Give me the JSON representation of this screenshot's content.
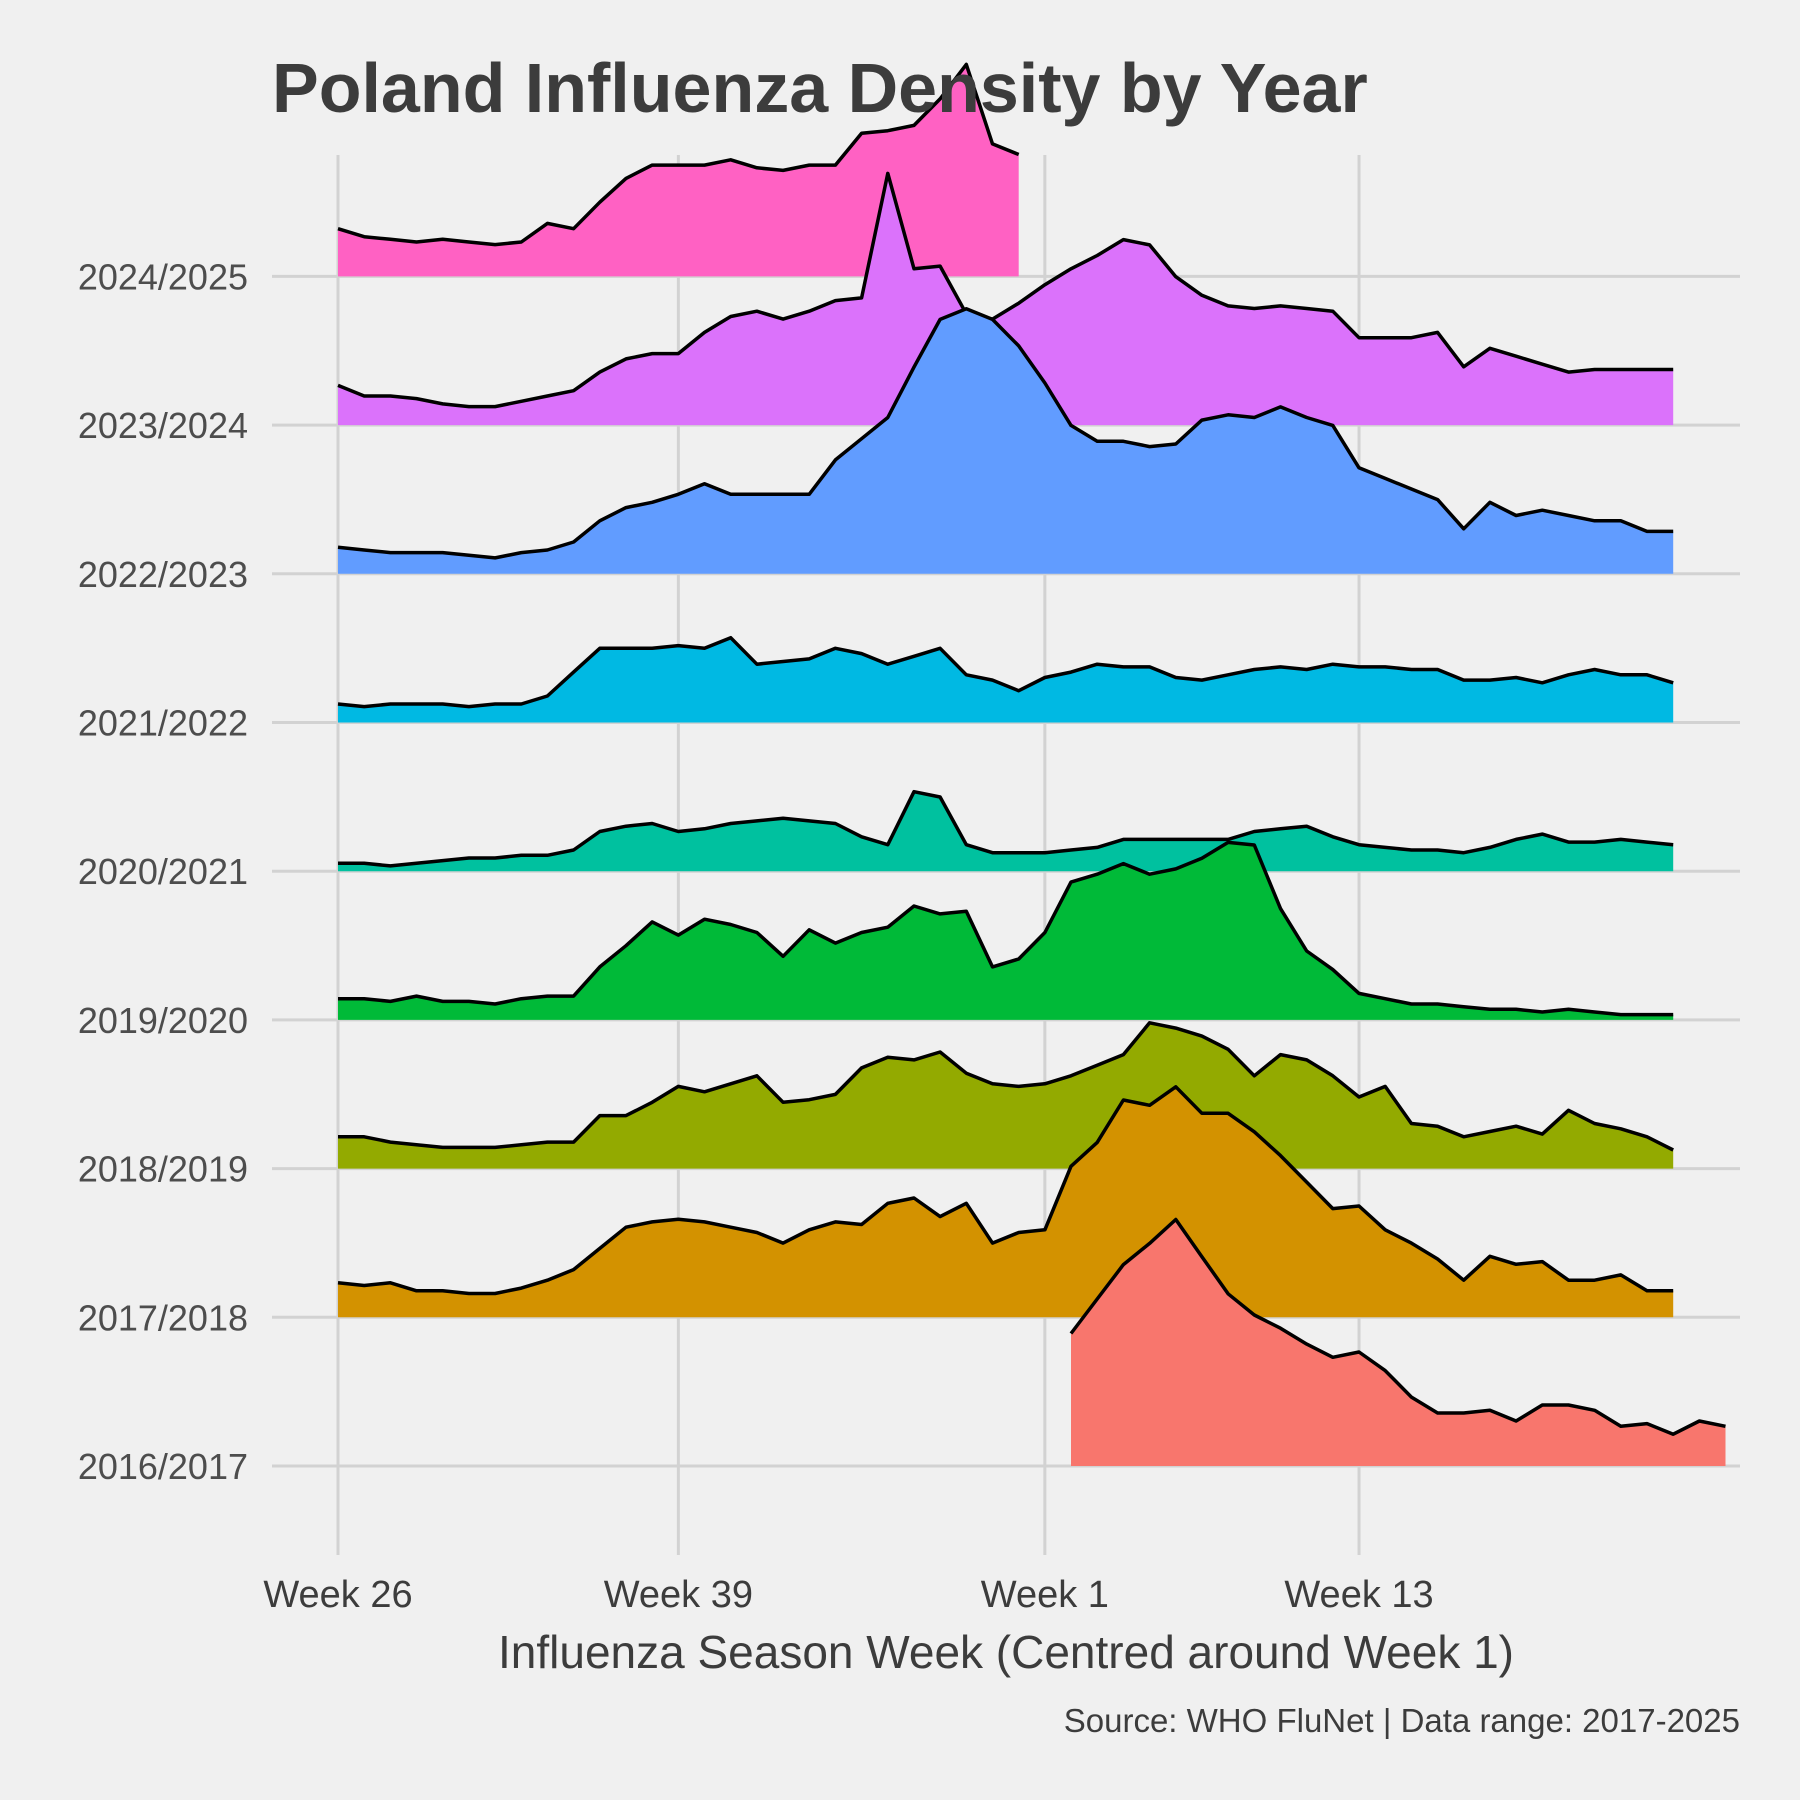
{
  "chart_data": {
    "type": "area",
    "subtype": "ridgeline",
    "title": "Poland Influenza Density by Year",
    "xlabel": "Influenza Season Week (Centred around Week 1)",
    "caption": "Source: WHO FluNet | Data range: 2017-2025",
    "x_tick_labels": [
      "Week 26",
      "Week 39",
      "Week 1",
      "Week 13"
    ],
    "x_tick_positions": [
      0,
      13,
      27,
      39
    ],
    "xlim": [
      -3,
      55
    ],
    "grid": true,
    "y_categories": [
      "2016/2017",
      "2017/2018",
      "2018/2019",
      "2019/2020",
      "2020/2021",
      "2021/2022",
      "2022/2023",
      "2023/2024",
      "2024/2025"
    ],
    "series": [
      {
        "name": "2016/2017",
        "color": "#F8766D",
        "start": 28,
        "values": [
          0.5,
          0.63,
          0.76,
          0.84,
          0.93,
          0.79,
          0.65,
          0.57,
          0.52,
          0.46,
          0.41,
          0.43,
          0.36,
          0.26,
          0.2,
          0.2,
          0.21,
          0.17,
          0.23,
          0.23,
          0.21,
          0.15,
          0.16,
          0.12,
          0.17,
          0.15
        ]
      },
      {
        "name": "2017/2018",
        "color": "#D39200",
        "start": 0,
        "values": [
          0.13,
          0.12,
          0.13,
          0.1,
          0.1,
          0.09,
          0.09,
          0.11,
          0.14,
          0.18,
          0.26,
          0.34,
          0.36,
          0.37,
          0.36,
          0.34,
          0.32,
          0.28,
          0.33,
          0.36,
          0.35,
          0.43,
          0.45,
          0.38,
          0.43,
          0.28,
          0.32,
          0.33,
          0.57,
          0.66,
          0.82,
          0.8,
          0.87,
          0.77,
          0.77,
          0.7,
          0.61,
          0.51,
          0.41,
          0.42,
          0.33,
          0.28,
          0.22,
          0.14,
          0.23,
          0.2,
          0.21,
          0.14,
          0.14,
          0.16,
          0.1,
          0.1
        ]
      },
      {
        "name": "2018/2019",
        "color": "#93AA00",
        "start": 0,
        "values": [
          0.12,
          0.12,
          0.1,
          0.09,
          0.08,
          0.08,
          0.08,
          0.09,
          0.1,
          0.1,
          0.2,
          0.2,
          0.25,
          0.31,
          0.29,
          0.32,
          0.35,
          0.25,
          0.26,
          0.28,
          0.38,
          0.42,
          0.41,
          0.44,
          0.36,
          0.32,
          0.31,
          0.32,
          0.35,
          0.39,
          0.43,
          0.55,
          0.53,
          0.5,
          0.45,
          0.35,
          0.43,
          0.41,
          0.35,
          0.27,
          0.31,
          0.17,
          0.16,
          0.12,
          0.14,
          0.16,
          0.13,
          0.22,
          0.17,
          0.15,
          0.12,
          0.07
        ]
      },
      {
        "name": "2019/2020",
        "color": "#00BA38",
        "start": 0,
        "values": [
          0.08,
          0.08,
          0.07,
          0.09,
          0.07,
          0.07,
          0.06,
          0.08,
          0.09,
          0.09,
          0.2,
          0.28,
          0.37,
          0.32,
          0.38,
          0.36,
          0.33,
          0.24,
          0.34,
          0.29,
          0.33,
          0.35,
          0.43,
          0.4,
          0.41,
          0.2,
          0.23,
          0.33,
          0.52,
          0.55,
          0.59,
          0.55,
          0.57,
          0.61,
          0.67,
          0.66,
          0.42,
          0.26,
          0.19,
          0.1,
          0.08,
          0.06,
          0.06,
          0.05,
          0.04,
          0.04,
          0.03,
          0.04,
          0.03,
          0.02,
          0.02,
          0.02
        ]
      },
      {
        "name": "2020/2021",
        "color": "#00C19F",
        "start": 0,
        "values": [
          0.03,
          0.03,
          0.02,
          0.03,
          0.04,
          0.05,
          0.05,
          0.06,
          0.06,
          0.08,
          0.15,
          0.17,
          0.18,
          0.15,
          0.16,
          0.18,
          0.19,
          0.2,
          0.19,
          0.18,
          0.13,
          0.1,
          0.3,
          0.28,
          0.1,
          0.07,
          0.07,
          0.07,
          0.08,
          0.09,
          0.12,
          0.12,
          0.12,
          0.12,
          0.12,
          0.15,
          0.16,
          0.17,
          0.13,
          0.1,
          0.09,
          0.08,
          0.08,
          0.07,
          0.09,
          0.12,
          0.14,
          0.11,
          0.11,
          0.12,
          0.11,
          0.1
        ]
      },
      {
        "name": "2021/2022",
        "color": "#00B9E3",
        "start": 0,
        "values": [
          0.07,
          0.06,
          0.07,
          0.07,
          0.07,
          0.06,
          0.07,
          0.07,
          0.1,
          0.19,
          0.28,
          0.28,
          0.28,
          0.29,
          0.28,
          0.32,
          0.22,
          0.23,
          0.24,
          0.28,
          0.26,
          0.22,
          0.25,
          0.28,
          0.18,
          0.16,
          0.12,
          0.17,
          0.19,
          0.22,
          0.21,
          0.21,
          0.17,
          0.16,
          0.18,
          0.2,
          0.21,
          0.2,
          0.22,
          0.21,
          0.21,
          0.2,
          0.2,
          0.16,
          0.16,
          0.17,
          0.15,
          0.18,
          0.2,
          0.18,
          0.18,
          0.15
        ]
      },
      {
        "name": "2022/2023",
        "color": "#619CFF",
        "start": 0,
        "values": [
          0.1,
          0.09,
          0.08,
          0.08,
          0.08,
          0.07,
          0.06,
          0.08,
          0.09,
          0.12,
          0.2,
          0.25,
          0.27,
          0.3,
          0.34,
          0.3,
          0.3,
          0.3,
          0.3,
          0.43,
          0.51,
          0.59,
          0.78,
          0.96,
          1.0,
          0.96,
          0.86,
          0.72,
          0.56,
          0.5,
          0.5,
          0.48,
          0.49,
          0.58,
          0.6,
          0.59,
          0.63,
          0.59,
          0.56,
          0.4,
          0.36,
          0.32,
          0.28,
          0.17,
          0.27,
          0.22,
          0.24,
          0.22,
          0.2,
          0.2,
          0.16,
          0.16
        ]
      },
      {
        "name": "2023/2024",
        "color": "#DB72FB",
        "start": 0,
        "values": [
          0.15,
          0.11,
          0.11,
          0.1,
          0.08,
          0.07,
          0.07,
          0.09,
          0.11,
          0.13,
          0.2,
          0.25,
          0.27,
          0.27,
          0.35,
          0.41,
          0.43,
          0.4,
          0.43,
          0.47,
          0.48,
          0.95,
          0.59,
          0.6,
          0.42,
          0.4,
          0.46,
          0.53,
          0.59,
          0.64,
          0.7,
          0.68,
          0.56,
          0.49,
          0.45,
          0.44,
          0.45,
          0.44,
          0.43,
          0.33,
          0.33,
          0.33,
          0.35,
          0.22,
          0.29,
          0.26,
          0.23,
          0.2,
          0.21,
          0.21,
          0.21,
          0.21
        ]
      },
      {
        "name": "2024/2025",
        "color": "#FF61C3",
        "start": 0,
        "values": [
          0.18,
          0.15,
          0.14,
          0.13,
          0.14,
          0.13,
          0.12,
          0.13,
          0.2,
          0.18,
          0.28,
          0.37,
          0.42,
          0.42,
          0.42,
          0.44,
          0.41,
          0.4,
          0.42,
          0.42,
          0.54,
          0.55,
          0.57,
          0.67,
          0.8,
          0.5,
          0.46
        ]
      }
    ]
  }
}
